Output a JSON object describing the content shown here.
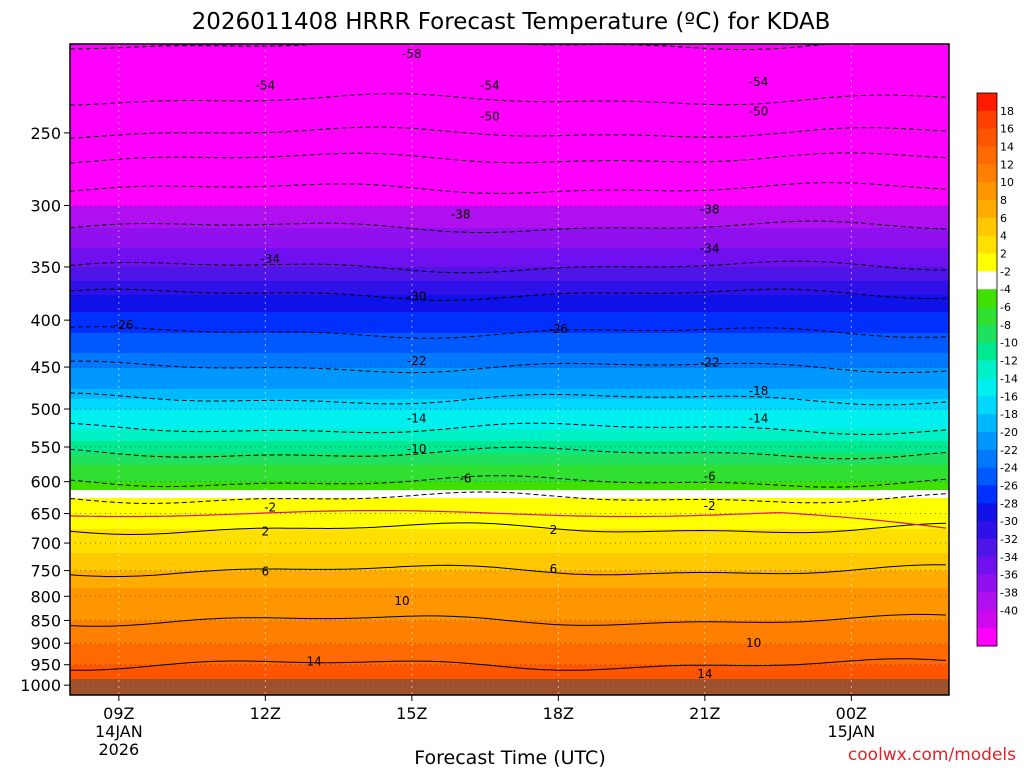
{
  "chart_data": {
    "type": "heatmap",
    "title": "2026011408 HRRR Forecast Temperature (ºC) for KDAB",
    "xlabel": "Forecast Time (UTC)",
    "ylabel": "",
    "y_axis_ticks": [
      250,
      300,
      350,
      400,
      450,
      500,
      550,
      600,
      650,
      700,
      750,
      800,
      850,
      900,
      950,
      1000
    ],
    "y_axis_tick_labels": [
      "250",
      "300",
      "350",
      "400",
      "450",
      "500",
      "550",
      "600",
      "650",
      "700",
      "750",
      "800",
      "850",
      "900",
      "950",
      "1000"
    ],
    "ylim": [
      1025,
      200
    ],
    "x_axis_ticks": [
      {
        "label": "09Z",
        "sub1": "14JAN",
        "sub2": "2026",
        "hour": 9
      },
      {
        "label": "12Z",
        "sub1": "",
        "sub2": "",
        "hour": 12
      },
      {
        "label": "15Z",
        "sub1": "",
        "sub2": "",
        "hour": 15
      },
      {
        "label": "18Z",
        "sub1": "",
        "sub2": "",
        "hour": 18
      },
      {
        "label": "21Z",
        "sub1": "",
        "sub2": "",
        "hour": 21
      },
      {
        "label": "00Z",
        "sub1": "15JAN",
        "sub2": "",
        "hour": 24
      }
    ],
    "xlim": [
      8,
      26
    ],
    "colorbar": {
      "labels": [
        "18",
        "16",
        "14",
        "12",
        "10",
        "8",
        "6",
        "4",
        "2",
        "-2",
        "-4",
        "-6",
        "-8",
        "-10",
        "-12",
        "-14",
        "-16",
        "-18",
        "-20",
        "-22",
        "-24",
        "-26",
        "-28",
        "-30",
        "-32",
        "-34",
        "-36",
        "-38",
        "-40"
      ],
      "colors": [
        "#ff1a00",
        "#ff4000",
        "#ff5500",
        "#ff6a00",
        "#ff8000",
        "#ff9600",
        "#ffab00",
        "#ffc800",
        "#ffe000",
        "#ffff00",
        "#ffffff",
        "#40e000",
        "#30e030",
        "#20e060",
        "#00e890",
        "#00f0c8",
        "#00f0f0",
        "#00d8ff",
        "#00b8ff",
        "#0098ff",
        "#0078ff",
        "#0058ff",
        "#0030ff",
        "#1010e8",
        "#3010e8",
        "#5014e8",
        "#7010f0",
        "#9010f0",
        "#b010f0",
        "#d008f0",
        "#ff00ff"
      ]
    },
    "temperature_profile": {
      "description": "Approximate temperature (C) at pressure level, representative across forecast period",
      "levels_hPa": [
        200,
        225,
        250,
        275,
        300,
        325,
        350,
        375,
        400,
        425,
        450,
        475,
        500,
        525,
        550,
        575,
        600,
        625,
        650,
        675,
        700,
        750,
        800,
        850,
        900,
        950,
        1000
      ],
      "temps_C": [
        -58,
        -55,
        -50,
        -44,
        -40,
        -37,
        -34,
        -30,
        -27,
        -25,
        -22,
        -20,
        -16,
        -14,
        -11,
        -8,
        -6,
        -2,
        0,
        2,
        3,
        6,
        9,
        10,
        12,
        14,
        16
      ]
    },
    "contour_labels": [
      {
        "text": "-58",
        "hour": 15,
        "p": 205
      },
      {
        "text": "-54",
        "hour": 12,
        "p": 222
      },
      {
        "text": "-54",
        "hour": 16.6,
        "p": 222
      },
      {
        "text": "-54",
        "hour": 22.1,
        "p": 220
      },
      {
        "text": "-50",
        "hour": 16.6,
        "p": 240
      },
      {
        "text": "-50",
        "hour": 22.1,
        "p": 237
      },
      {
        "text": "-38",
        "hour": 16.0,
        "p": 307
      },
      {
        "text": "-38",
        "hour": 21.1,
        "p": 303
      },
      {
        "text": "-34",
        "hour": 12.1,
        "p": 343
      },
      {
        "text": "-34",
        "hour": 21.1,
        "p": 334
      },
      {
        "text": "-30",
        "hour": 15.1,
        "p": 377
      },
      {
        "text": "-26",
        "hour": 9.1,
        "p": 405
      },
      {
        "text": "-26",
        "hour": 18.0,
        "p": 409
      },
      {
        "text": "-22",
        "hour": 15.1,
        "p": 443
      },
      {
        "text": "-22",
        "hour": 21.1,
        "p": 445
      },
      {
        "text": "-18",
        "hour": 22.1,
        "p": 478
      },
      {
        "text": "-14",
        "hour": 15.1,
        "p": 512
      },
      {
        "text": "-14",
        "hour": 22.1,
        "p": 512
      },
      {
        "text": "-10",
        "hour": 15.1,
        "p": 553
      },
      {
        "text": "-6",
        "hour": 16.1,
        "p": 595
      },
      {
        "text": "-6",
        "hour": 21.1,
        "p": 592
      },
      {
        "text": "-2",
        "hour": 12.1,
        "p": 640
      },
      {
        "text": "-2",
        "hour": 21.1,
        "p": 638
      },
      {
        "text": "2",
        "hour": 12.0,
        "p": 680
      },
      {
        "text": "2",
        "hour": 17.9,
        "p": 677
      },
      {
        "text": "6",
        "hour": 12.0,
        "p": 752
      },
      {
        "text": "6",
        "hour": 17.9,
        "p": 747
      },
      {
        "text": "10",
        "hour": 14.8,
        "p": 810
      },
      {
        "text": "10",
        "hour": 22.0,
        "p": 900
      },
      {
        "text": "14",
        "hour": 13.0,
        "p": 942
      },
      {
        "text": "14",
        "hour": 21.0,
        "p": 972
      }
    ]
  },
  "footer": {
    "credit": "coolwx.com/models"
  }
}
